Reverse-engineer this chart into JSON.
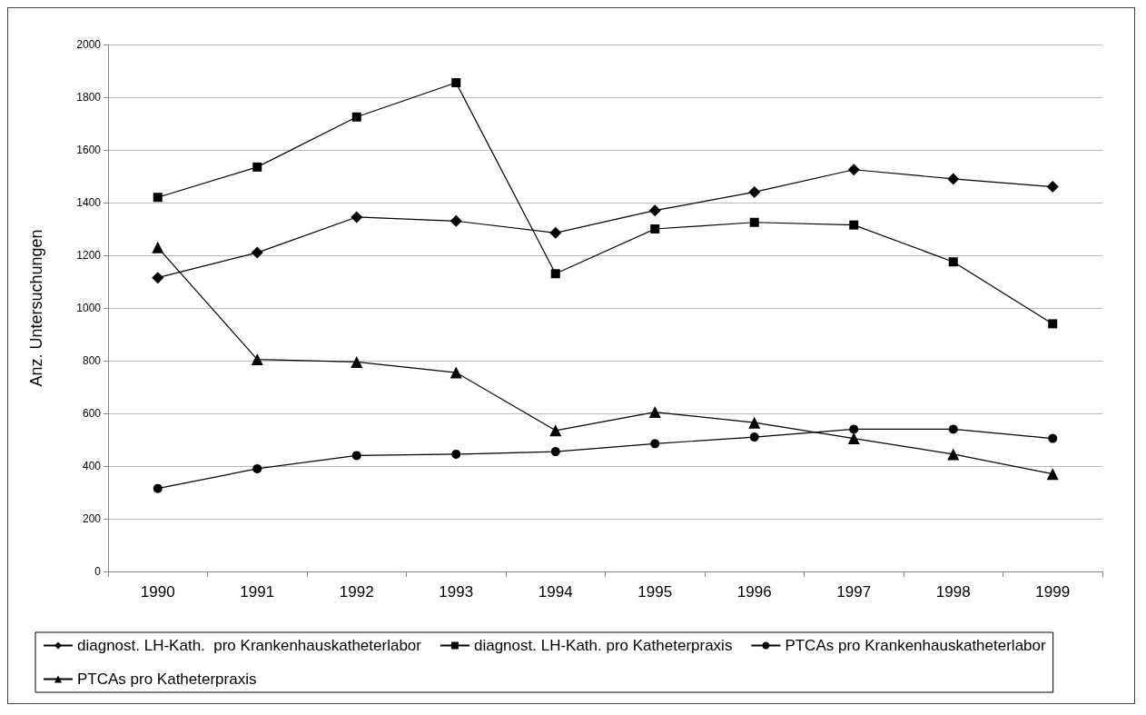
{
  "chart_data": {
    "type": "line",
    "ylabel": "Anz. Untersuchungen",
    "categories": [
      "1990",
      "1991",
      "1992",
      "1993",
      "1994",
      "1995",
      "1996",
      "1997",
      "1998",
      "1999"
    ],
    "ylim": [
      0,
      2000
    ],
    "yticks": [
      0,
      200,
      400,
      600,
      800,
      1000,
      1200,
      1400,
      1600,
      1800,
      2000
    ],
    "grid": "y",
    "legend": "bottom",
    "line_style": "solid",
    "series": [
      {
        "name": "diagnost. LH-Kath.  pro Krankenhauskatheterlabor",
        "color": "#000000",
        "marker": "diamond",
        "values": [
          1115,
          1210,
          1345,
          1330,
          1285,
          1370,
          1440,
          1525,
          1490,
          1460
        ]
      },
      {
        "name": "diagnost. LH-Kath. pro Katheterpraxis",
        "color": "#000000",
        "marker": "square",
        "values": [
          1420,
          1535,
          1725,
          1855,
          1130,
          1300,
          1325,
          1315,
          1175,
          940
        ]
      },
      {
        "name": "PTCAs pro Krankenhauskatheterlabor",
        "color": "#000000",
        "marker": "circle",
        "values": [
          315,
          390,
          440,
          445,
          455,
          485,
          510,
          540,
          540,
          505
        ]
      },
      {
        "name": "PTCAs pro Katheterpraxis",
        "color": "#000000",
        "marker": "triangle",
        "values": [
          1230,
          805,
          795,
          755,
          535,
          605,
          565,
          505,
          445,
          370
        ]
      }
    ]
  }
}
